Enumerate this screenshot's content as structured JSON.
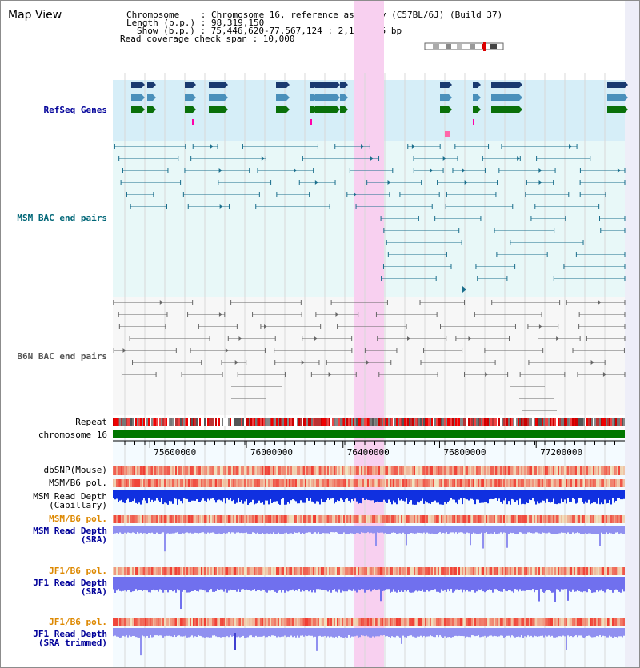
{
  "page": {
    "title": "Map View"
  },
  "info": {
    "chromosome": "Chromosome    : Chromosome 16, reference assembly (C57BL/6J) (Build 37)",
    "length": "Length (b.p.) : 98,319,150",
    "show": "Show (b.p.) : 75,446,620-77,567,124 : 2,120,505 bp",
    "span": "Read coverage check span : 10,000"
  },
  "tracks": {
    "refseq": "RefSeq Genes",
    "msm_bac": "MSM BAC end pairs",
    "b6n_bac": "B6N BAC end pairs",
    "repeat": "Repeat",
    "chromosome": "chromosome 16",
    "dbsnp": "dbSNP(Mouse)",
    "msm_pol": "MSM/B6 pol.",
    "msm_depth_cap": "MSM Read Depth\n(Capillary)",
    "msm_pol_sra": "MSM/B6 pol.",
    "msm_depth_sra": "MSM Read Depth\n(SRA)",
    "jf1_pol": "JF1/B6 pol.",
    "jf1_depth": "JF1 Read Depth\n(SRA)",
    "jf1_pol2": "JF1/B6 pol.",
    "jf1_depth_trim": "JF1 Read Depth\n(SRA trimmed)"
  },
  "axis": {
    "ticks": [
      "75600000",
      "76000000",
      "76400000",
      "76800000",
      "77200000"
    ],
    "tick_positions_bp": [
      75600000,
      76000000,
      76400000,
      76800000,
      77200000
    ],
    "start_bp": 75446620,
    "end_bp": 77567124
  },
  "colors": {
    "refseq_bg": "#d6eef8",
    "bac_bg": "#e8f8f8",
    "highlight": "#f8d0f0",
    "msm_line": "#1a6e8c",
    "b6n_line": "#666666",
    "label_blue": "#000099",
    "label_teal": "#006677",
    "label_orange": "#dd8800",
    "chrom_green": "#007700"
  }
}
